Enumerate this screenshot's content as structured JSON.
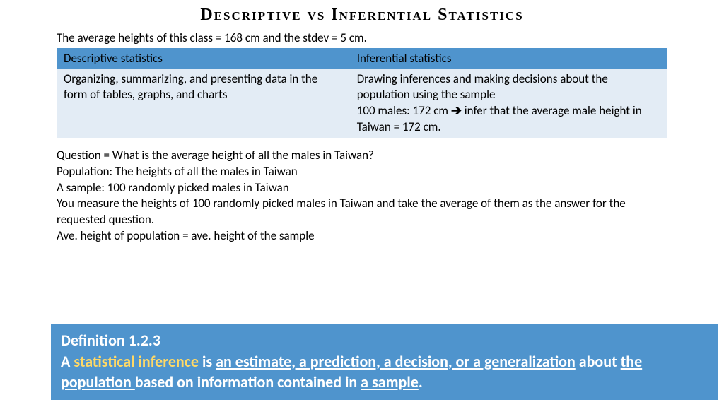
{
  "title": "Descriptive vs Inferential Statistics",
  "intro": "The average heights of this class = 168 cm and the stdev = 5 cm.",
  "table": {
    "header_bg": "#4f94cd",
    "body_bg": "#e3ecf5",
    "text_color": "#000000",
    "columns": [
      "Descriptive statistics",
      "Inferential statistics"
    ],
    "row_left": "Organizing, summarizing, and presenting data in the form of tables, graphs, and charts",
    "row_right_line1": "Drawing inferences and making decisions about the population using the sample",
    "row_right_line2_prefix": " 100 males: 172 cm ",
    "row_right_line2_suffix": " infer that the average male height in Taiwan = 172 cm.",
    "arrow": "➔",
    "col1_width": "48%",
    "col2_width": "52%"
  },
  "body_paragraphs": [
    "Question = What is the average height of all the males in Taiwan?",
    "Population: The heights of all the males in Taiwan",
    "A sample: 100 randomly picked males in Taiwan",
    "You measure the heights of 100 randomly picked males in Taiwan and take the average of them as the answer for the requested question.",
    "Ave. height of population = ave. height of the sample"
  ],
  "definition": {
    "bg": "#4f94cd",
    "text_color": "#ffffff",
    "highlight_color": "#ffd966",
    "heading": "Definition 1.2.3",
    "prefix": "A ",
    "highlight": "statistical inference",
    "mid1": " is ",
    "ul1": "an estimate, a prediction, a decision, or a generalization",
    "mid2": " about ",
    "ul2": "the population ",
    "mid3": "based on information contained in ",
    "ul3": "a sample",
    "suffix": "."
  }
}
